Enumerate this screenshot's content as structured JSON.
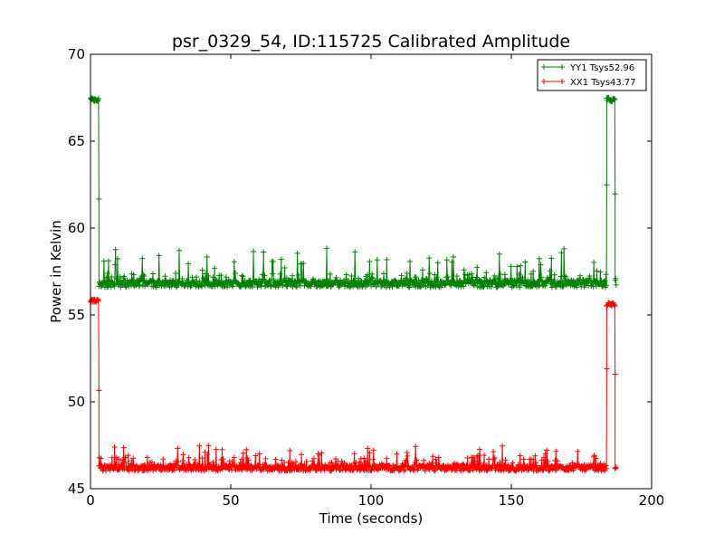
{
  "chart_data": {
    "type": "line",
    "title": "psr_0329_54, ID:115725 Calibrated Amplitude",
    "xlabel": "Time (seconds)",
    "ylabel": "Power in Kelvin",
    "xlim": [
      0,
      200
    ],
    "ylim": [
      45,
      70
    ],
    "xticks": [
      0,
      50,
      100,
      150,
      200
    ],
    "yticks": [
      45,
      50,
      55,
      60,
      65,
      70
    ],
    "grid": false,
    "legend_position": "top-right",
    "marker": "plus",
    "series": [
      {
        "name": "YY1 Tsys52.96",
        "color": "#008000",
        "baseline_segments": [
          {
            "x_start": 0.0,
            "x_end": 3.0,
            "level": 67.4
          },
          {
            "x_start": 3.0,
            "x_end": 184.0,
            "level": 56.8
          },
          {
            "x_start": 184.0,
            "x_end": 187.0,
            "level": 67.4
          },
          {
            "x_start": 187.0,
            "x_end": 187.5,
            "level": 56.8
          }
        ],
        "values_summary": {
          "low_level": 56.8,
          "high_level": 67.4,
          "low_noise": 0.3,
          "high_noise": 0.15,
          "max_spike": 58.9
        }
      },
      {
        "name": "XX1 Tsys43.77",
        "color": "#ff0000",
        "baseline_segments": [
          {
            "x_start": 0.0,
            "x_end": 3.0,
            "level": 55.8
          },
          {
            "x_start": 3.0,
            "x_end": 184.0,
            "level": 46.2
          },
          {
            "x_start": 184.0,
            "x_end": 187.0,
            "level": 55.6
          },
          {
            "x_start": 187.0,
            "x_end": 187.5,
            "level": 46.1
          }
        ],
        "values_summary": {
          "low_level": 46.2,
          "high_level": 55.7,
          "low_noise": 0.25,
          "high_noise": 0.15,
          "max_spike": 47.5
        }
      }
    ]
  }
}
